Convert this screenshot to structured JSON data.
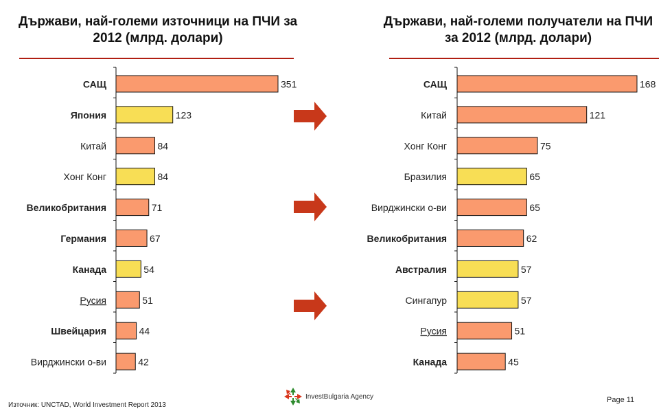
{
  "titles": {
    "left": "Държави, най-големи източници на ПЧИ за 2012 (млрд. долари)",
    "right": "Държави, най-големи получатели на ПЧИ за 2012 (млрд. долари)"
  },
  "colors": {
    "orange": "#fa9a6e",
    "yellow": "#f8de55",
    "rule": "#b01e12",
    "arrow": "#c8381a"
  },
  "footer": {
    "source": "Източник: UNCTAD, World Investment Report 2013",
    "page": "Page 11",
    "logo_text": "InvestBulgaria Agency"
  },
  "chart_data": [
    {
      "type": "bar",
      "orientation": "horizontal",
      "title": "Държави, най-големи източници на ПЧИ за 2012 (млрд. долари)",
      "categories": [
        "САЩ",
        "Япония",
        "Китай",
        "Хонг Конг",
        "Великобритания",
        "Германия",
        "Канада",
        "Русия",
        "Швейцария",
        "Вирджински о-ви"
      ],
      "values": [
        351,
        123,
        84,
        84,
        71,
        67,
        54,
        51,
        44,
        42
      ],
      "bar_colors": [
        "orange",
        "yellow",
        "orange",
        "yellow",
        "orange",
        "orange",
        "yellow",
        "orange",
        "orange",
        "orange"
      ],
      "label_style": [
        "bold",
        "bold",
        "normal",
        "normal",
        "bold",
        "bold",
        "bold",
        "underline",
        "bold",
        "normal"
      ],
      "xlim": [
        0,
        351
      ],
      "grid": false
    },
    {
      "type": "bar",
      "orientation": "horizontal",
      "title": "Държави, най-големи получатели на ПЧИ за 2012 (млрд. долари)",
      "categories": [
        "САЩ",
        "Китай",
        "Хонг Конг",
        "Бразилия",
        "Вирджински о-ви",
        "Великобритания",
        "Австралия",
        "Сингапур",
        "Русия",
        "Канада"
      ],
      "values": [
        168,
        121,
        75,
        65,
        65,
        62,
        57,
        57,
        51,
        45
      ],
      "bar_colors": [
        "orange",
        "orange",
        "orange",
        "yellow",
        "orange",
        "orange",
        "yellow",
        "yellow",
        "orange",
        "orange"
      ],
      "label_style": [
        "bold",
        "normal",
        "normal",
        "normal",
        "normal",
        "bold",
        "bold",
        "normal",
        "underline",
        "bold"
      ],
      "xlim": [
        0,
        168
      ],
      "grid": false
    }
  ]
}
